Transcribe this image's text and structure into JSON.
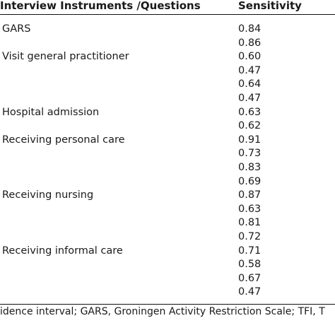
{
  "table": {
    "headers": {
      "instrument": "Interview Instruments /Questions",
      "sensitivity": "Sensitivity"
    },
    "rows": [
      {
        "label": "GARS",
        "value": "0.84"
      },
      {
        "label": "",
        "value": "0.86"
      },
      {
        "label": "Visit general practitioner",
        "value": "0.60"
      },
      {
        "label": "",
        "value": "0.47"
      },
      {
        "label": "",
        "value": "0.64"
      },
      {
        "label": "",
        "value": "0.47"
      },
      {
        "label": "Hospital admission",
        "value": "0.63"
      },
      {
        "label": "",
        "value": "0.62"
      },
      {
        "label": "Receiving personal care",
        "value": "0.91"
      },
      {
        "label": "",
        "value": "0.73"
      },
      {
        "label": "",
        "value": "0.83"
      },
      {
        "label": "",
        "value": "0.69"
      },
      {
        "label": "Receiving nursing",
        "value": "0.87"
      },
      {
        "label": "",
        "value": "0.63"
      },
      {
        "label": "",
        "value": "0.81"
      },
      {
        "label": "",
        "value": "0.72"
      },
      {
        "label": "Receiving informal care",
        "value": "0.71"
      },
      {
        "label": "",
        "value": "0.58"
      },
      {
        "label": "",
        "value": "0.67"
      },
      {
        "label": "",
        "value": "0.47"
      }
    ]
  },
  "footnote": "idence interval; GARS, Groningen Activity Restriction Scale; TFI, T"
}
